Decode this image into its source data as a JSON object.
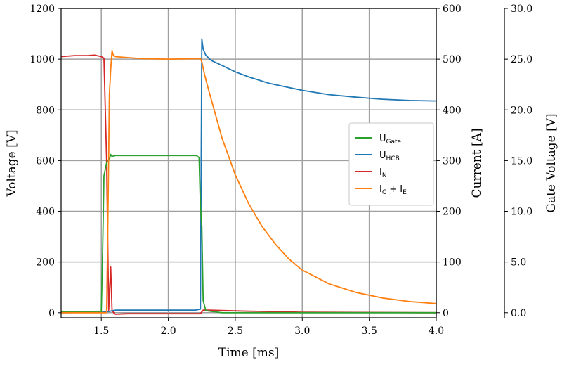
{
  "chart_data": {
    "type": "line",
    "xlabel": "Time [ms]",
    "ylabel_left": "Voltage [V]",
    "ylabel_right1": "Current [A]",
    "ylabel_right2": "Gate Voltage [V]",
    "xlim": [
      1.2,
      4.0
    ],
    "ylim_left": [
      -20,
      1200
    ],
    "ylim_right1": [
      -10,
      600
    ],
    "ylim_right2": [
      -0.5,
      30.0
    ],
    "xticks": [
      "1.5",
      "2.0",
      "2.5",
      "3.0",
      "3.5",
      "4.0"
    ],
    "yticks_left": [
      "0",
      "200",
      "400",
      "600",
      "800",
      "1000",
      "1200"
    ],
    "yticks_right1": [
      "0",
      "100",
      "200",
      "300",
      "400",
      "500",
      "600"
    ],
    "yticks_right2": [
      "0.0",
      "5.0",
      "10.0",
      "15.0",
      "20.0",
      "25.0",
      "30.0"
    ],
    "grid": true,
    "legend_placement": "center-right",
    "legend": [
      {
        "main": "U",
        "sub": "Gate",
        "color": "#2ca02c"
      },
      {
        "main": "U",
        "sub": "HCB",
        "color": "#1f77b4"
      },
      {
        "main": "I",
        "sub": "N",
        "color": "#d62728"
      },
      {
        "main": "I",
        "sub": "C",
        "mid": " + I",
        "sub2": "E",
        "color": "#ff7f0e"
      }
    ],
    "series": [
      {
        "name": "UGate",
        "axis": "right2",
        "color": "#2ca02c",
        "points": [
          [
            1.2,
            0.1
          ],
          [
            1.5,
            0.1
          ],
          [
            1.51,
            6.0
          ],
          [
            1.52,
            13.5
          ],
          [
            1.54,
            14.8
          ],
          [
            1.56,
            15.1
          ],
          [
            1.57,
            15.6
          ],
          [
            1.58,
            15.4
          ],
          [
            1.6,
            15.5
          ],
          [
            2.0,
            15.5
          ],
          [
            2.21,
            15.5
          ],
          [
            2.23,
            15.3
          ],
          [
            2.24,
            10.5
          ],
          [
            2.25,
            8.5
          ],
          [
            2.26,
            1.2
          ],
          [
            2.28,
            0.2
          ],
          [
            2.4,
            0.0
          ],
          [
            4.0,
            0.0
          ]
        ]
      },
      {
        "name": "UHCB",
        "axis": "left",
        "color": "#1f77b4",
        "points": [
          [
            1.2,
            0
          ],
          [
            1.5,
            2
          ],
          [
            1.56,
            5
          ],
          [
            1.6,
            10
          ],
          [
            1.9,
            10
          ],
          [
            2.2,
            10
          ],
          [
            2.24,
            14
          ],
          [
            2.25,
            1080
          ],
          [
            2.26,
            1040
          ],
          [
            2.28,
            1015
          ],
          [
            2.32,
            995
          ],
          [
            2.4,
            975
          ],
          [
            2.5,
            950
          ],
          [
            2.6,
            930
          ],
          [
            2.75,
            905
          ],
          [
            2.9,
            888
          ],
          [
            3.0,
            877
          ],
          [
            3.2,
            860
          ],
          [
            3.4,
            850
          ],
          [
            3.6,
            842
          ],
          [
            3.8,
            837
          ],
          [
            4.0,
            835
          ]
        ]
      },
      {
        "name": "IN",
        "axis": "right1",
        "color": "#d62728",
        "points": [
          [
            1.2,
            505
          ],
          [
            1.3,
            507
          ],
          [
            1.4,
            507
          ],
          [
            1.45,
            508
          ],
          [
            1.5,
            505
          ],
          [
            1.52,
            502
          ],
          [
            1.54,
            300
          ],
          [
            1.555,
            5
          ],
          [
            1.57,
            90
          ],
          [
            1.58,
            5
          ],
          [
            1.6,
            -3
          ],
          [
            1.7,
            -2
          ],
          [
            1.9,
            -2
          ],
          [
            2.1,
            -2
          ],
          [
            2.24,
            -2
          ],
          [
            2.26,
            5
          ],
          [
            2.3,
            5
          ],
          [
            2.6,
            3
          ],
          [
            3.0,
            1
          ],
          [
            4.0,
            0
          ]
        ]
      },
      {
        "name": "IC+IE",
        "axis": "right1",
        "color": "#ff7f0e",
        "points": [
          [
            1.2,
            0
          ],
          [
            1.54,
            0
          ],
          [
            1.55,
            200
          ],
          [
            1.56,
            430
          ],
          [
            1.57,
            480
          ],
          [
            1.58,
            517
          ],
          [
            1.59,
            507
          ],
          [
            1.6,
            505
          ],
          [
            1.8,
            501
          ],
          [
            2.0,
            500
          ],
          [
            2.24,
            501
          ],
          [
            2.25,
            495
          ],
          [
            2.27,
            470
          ],
          [
            2.3,
            440
          ],
          [
            2.4,
            345
          ],
          [
            2.5,
            272
          ],
          [
            2.6,
            215
          ],
          [
            2.7,
            170
          ],
          [
            2.8,
            135
          ],
          [
            2.9,
            106
          ],
          [
            3.0,
            84
          ],
          [
            3.2,
            57
          ],
          [
            3.4,
            40
          ],
          [
            3.6,
            29
          ],
          [
            3.8,
            22
          ],
          [
            4.0,
            18
          ]
        ]
      }
    ]
  }
}
